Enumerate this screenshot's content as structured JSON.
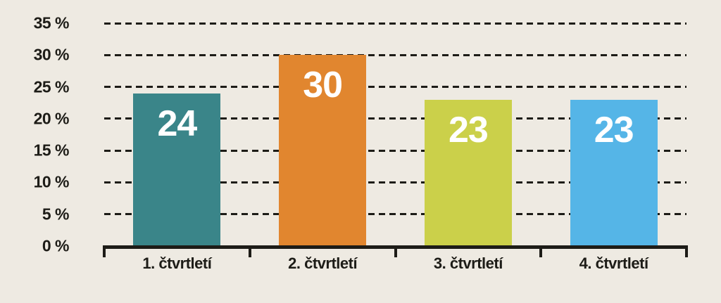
{
  "chart_data": {
    "type": "bar",
    "title": "",
    "xlabel": "",
    "ylabel": "",
    "categories": [
      "1. čtvrtletí",
      "2. čtvrtletí",
      "3. čtvrtletí",
      "4. čtvrtletí"
    ],
    "values": [
      24,
      30,
      23,
      23
    ],
    "value_labels": [
      "24",
      "30",
      "23",
      "23"
    ],
    "bar_colors": [
      "#3a8589",
      "#e1862f",
      "#cbd04a",
      "#55b5e7"
    ],
    "value_label_color": "#ffffff",
    "y_tick_labels": [
      "0 %",
      "5 %",
      "10 %",
      "15 %",
      "20 %",
      "25 %",
      "30 %",
      "35 %"
    ],
    "y_tick_values": [
      0,
      5,
      10,
      15,
      20,
      25,
      30,
      35
    ],
    "ylim": [
      0,
      35
    ],
    "grid": "horizontal-dashed",
    "legend": "none",
    "background_color": "#eeeae2",
    "ink_color": "#1d1c17"
  }
}
